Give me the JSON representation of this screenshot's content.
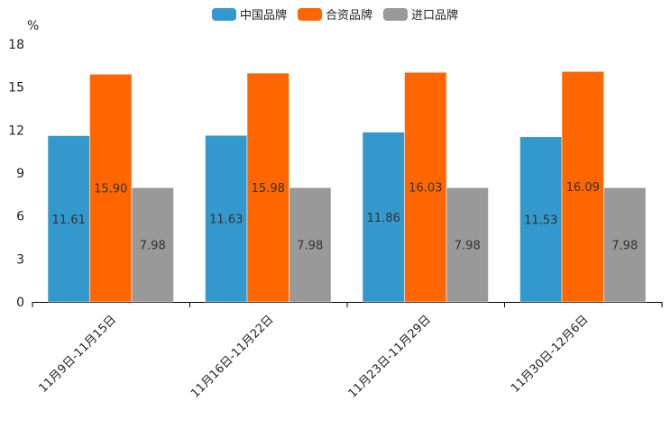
{
  "chart_data": {
    "type": "bar",
    "unit_label": "%",
    "categories": [
      "11月9日-11月15日",
      "11月16日-11月22日",
      "11月23日-11月29日",
      "11月30日-12月6日"
    ],
    "series": [
      {
        "name": "中国品牌",
        "color": "#3399cc",
        "values": [
          11.61,
          11.63,
          11.86,
          11.53
        ],
        "labels": [
          "11.61",
          "11.63",
          "11.86",
          "11.53"
        ]
      },
      {
        "name": "合资品牌",
        "color": "#ff6600",
        "values": [
          15.9,
          15.98,
          16.03,
          16.09
        ],
        "labels": [
          "15.90",
          "15.98",
          "16.03",
          "16.09"
        ]
      },
      {
        "name": "进口品牌",
        "color": "#999999",
        "values": [
          7.98,
          7.98,
          7.98,
          7.98
        ],
        "labels": [
          "7.98",
          "7.98",
          "7.98",
          "7.98"
        ]
      }
    ],
    "ylim": [
      0,
      18
    ],
    "yticks": [
      "0",
      "3",
      "6",
      "9",
      "12",
      "15",
      "18"
    ],
    "legend_position": "top-center"
  }
}
